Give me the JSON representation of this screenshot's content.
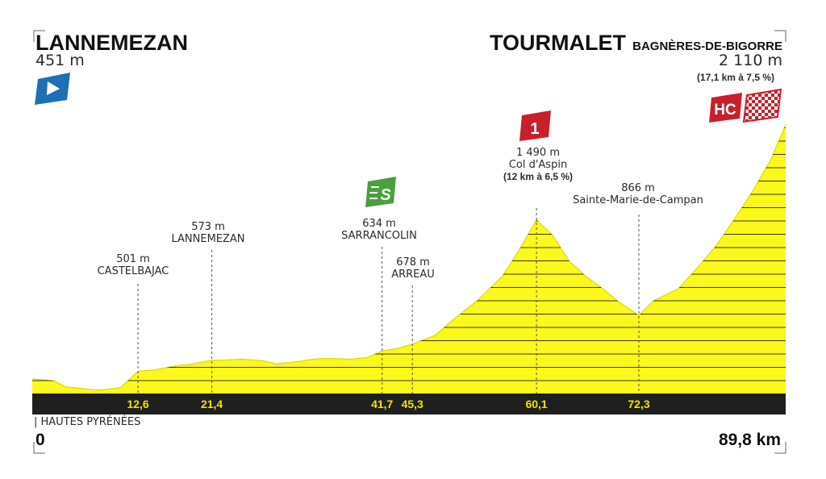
{
  "start": {
    "name": "LANNEMEZAN",
    "elevation": "451 m"
  },
  "finish": {
    "name": "TOURMALET",
    "sub": "BAGNÈRES-DE-BIGORRE",
    "elevation": "2 110 m",
    "climb": "(17,1 km à 7,5 %)"
  },
  "region": "| HAUTES PYRÉNÉES",
  "colors": {
    "fill": "#fbf81c",
    "band": "#1f1f1f",
    "hc": "#c8202a",
    "sprint": "#4aa03c",
    "start": "#1f6fb3",
    "km_text": "#f3e400"
  },
  "chart_data": {
    "type": "area",
    "title": "",
    "xlabel": "",
    "ylabel": "",
    "x_unit": "km",
    "y_unit": "m",
    "xlim": [
      0,
      89.8
    ],
    "ylim": [
      0,
      2110
    ],
    "x_ticks": [
      {
        "x": 0,
        "label": "0"
      },
      {
        "x": 12.6,
        "label": "12,6"
      },
      {
        "x": 21.4,
        "label": "21,4"
      },
      {
        "x": 41.7,
        "label": "41,7"
      },
      {
        "x": 45.3,
        "label": "45,3"
      },
      {
        "x": 60.1,
        "label": "60,1"
      },
      {
        "x": 72.3,
        "label": "72,3"
      },
      {
        "x": 89.8,
        "label": "89,8 km"
      }
    ],
    "profile": [
      [
        0,
        451
      ],
      [
        2.5,
        440
      ],
      [
        4,
        400
      ],
      [
        6.5,
        385
      ],
      [
        8,
        378
      ],
      [
        10.5,
        395
      ],
      [
        12.6,
        501
      ],
      [
        14.5,
        510
      ],
      [
        17.5,
        540
      ],
      [
        19,
        548
      ],
      [
        21.4,
        573
      ],
      [
        23,
        575
      ],
      [
        25,
        580
      ],
      [
        27.5,
        570
      ],
      [
        29,
        550
      ],
      [
        31,
        560
      ],
      [
        33.5,
        580
      ],
      [
        35,
        585
      ],
      [
        38,
        580
      ],
      [
        40,
        592
      ],
      [
        41.7,
        634
      ],
      [
        43.5,
        650
      ],
      [
        45.3,
        678
      ],
      [
        46.5,
        705
      ],
      [
        48,
        735
      ],
      [
        50,
        830
      ],
      [
        53,
        960
      ],
      [
        56,
        1120
      ],
      [
        58,
        1290
      ],
      [
        60.1,
        1490
      ],
      [
        62,
        1390
      ],
      [
        64,
        1220
      ],
      [
        66,
        1120
      ],
      [
        68,
        1040
      ],
      [
        70,
        950
      ],
      [
        72.3,
        866
      ],
      [
        74,
        960
      ],
      [
        77,
        1040
      ],
      [
        79,
        1160
      ],
      [
        81.5,
        1320
      ],
      [
        84,
        1520
      ],
      [
        86,
        1690
      ],
      [
        88,
        1880
      ],
      [
        89.8,
        2110
      ]
    ],
    "points": [
      {
        "km": 12.6,
        "elevation": "501 m",
        "name": "CASTELBAJAC"
      },
      {
        "km": 21.4,
        "elevation": "573 m",
        "name": "LANNEMEZAN"
      },
      {
        "km": 41.7,
        "elevation": "634 m",
        "name": "SARRANCOLIN"
      },
      {
        "km": 45.3,
        "elevation": "678 m",
        "name": "ARREAU"
      },
      {
        "km": 60.1,
        "elevation": "1 490 m",
        "name": "Col d'Aspin",
        "climb": "(12 km à 6,5 %)"
      },
      {
        "km": 72.3,
        "elevation": "866 m",
        "name": "Sainte-Marie-de-Campan"
      }
    ],
    "markers": {
      "sprint": "S",
      "cat1": "1",
      "hc": "HC"
    }
  }
}
